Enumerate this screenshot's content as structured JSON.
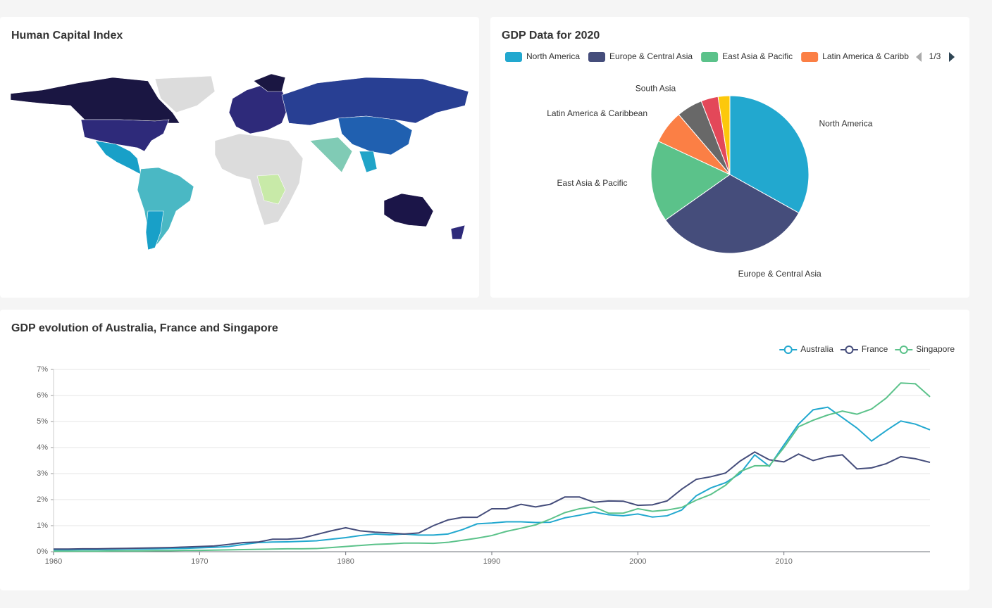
{
  "chart_data": [
    {
      "type": "map",
      "title": "Human Capital Index"
    },
    {
      "type": "pie",
      "title": "GDP Data for 2020",
      "categories": [
        "North America",
        "Europe & Central Asia",
        "East Asia & Pacific",
        "Latin America & Caribbean",
        "South Asia",
        null,
        null
      ],
      "values": [
        33,
        32,
        16.7,
        6.8,
        5.3,
        3.5,
        2.4
      ],
      "colors": [
        "#22a8cf",
        "#454d7b",
        "#5bc28a",
        "#fb7f45",
        "#686868",
        "#e34859",
        "#fcc80b"
      ],
      "legend_page": "1/3"
    },
    {
      "type": "line",
      "title": "GDP evolution of Australia, France and Singapore",
      "x": [
        1960,
        1961,
        1962,
        1963,
        1964,
        1965,
        1966,
        1967,
        1968,
        1969,
        1970,
        1971,
        1972,
        1973,
        1974,
        1975,
        1976,
        1977,
        1978,
        1979,
        1980,
        1981,
        1982,
        1983,
        1984,
        1985,
        1986,
        1987,
        1988,
        1989,
        1990,
        1991,
        1992,
        1993,
        1994,
        1995,
        1996,
        1997,
        1998,
        1999,
        2000,
        2001,
        2002,
        2003,
        2004,
        2005,
        2006,
        2007,
        2008,
        2009,
        2010,
        2011,
        2012,
        2013,
        2014,
        2015,
        2016,
        2017,
        2018,
        2019,
        2020
      ],
      "series": [
        {
          "name": "Australia",
          "color": "#22a8cf",
          "values": [
            0.07,
            0.07,
            0.08,
            0.08,
            0.09,
            0.1,
            0.1,
            0.11,
            0.12,
            0.13,
            0.15,
            0.17,
            0.2,
            0.28,
            0.35,
            0.37,
            0.38,
            0.4,
            0.42,
            0.48,
            0.54,
            0.62,
            0.68,
            0.65,
            0.68,
            0.64,
            0.64,
            0.68,
            0.85,
            1.07,
            1.1,
            1.15,
            1.15,
            1.12,
            1.13,
            1.3,
            1.4,
            1.52,
            1.42,
            1.38,
            1.45,
            1.33,
            1.38,
            1.6,
            2.15,
            2.45,
            2.65,
            3.0,
            3.72,
            3.28,
            4.1,
            4.9,
            5.45,
            5.55,
            5.15,
            4.75,
            4.25,
            4.65,
            5.02,
            4.9,
            4.68
          ]
        },
        {
          "name": "France",
          "color": "#454d7b",
          "values": [
            0.1,
            0.1,
            0.11,
            0.11,
            0.12,
            0.13,
            0.14,
            0.15,
            0.16,
            0.18,
            0.2,
            0.22,
            0.28,
            0.35,
            0.37,
            0.48,
            0.48,
            0.52,
            0.66,
            0.8,
            0.92,
            0.8,
            0.75,
            0.72,
            0.68,
            0.72,
            1.0,
            1.22,
            1.32,
            1.32,
            1.65,
            1.65,
            1.82,
            1.72,
            1.82,
            2.1,
            2.1,
            1.9,
            1.95,
            1.94,
            1.78,
            1.8,
            1.95,
            2.4,
            2.78,
            2.88,
            3.02,
            3.48,
            3.83,
            3.53,
            3.45,
            3.75,
            3.5,
            3.65,
            3.72,
            3.18,
            3.22,
            3.38,
            3.65,
            3.57,
            3.43
          ]
        },
        {
          "name": "Singapore",
          "color": "#5bc28a",
          "values": [
            0.02,
            0.02,
            0.02,
            0.02,
            0.03,
            0.03,
            0.03,
            0.04,
            0.04,
            0.05,
            0.05,
            0.06,
            0.07,
            0.08,
            0.09,
            0.1,
            0.11,
            0.11,
            0.12,
            0.16,
            0.2,
            0.24,
            0.28,
            0.3,
            0.33,
            0.33,
            0.32,
            0.36,
            0.44,
            0.52,
            0.62,
            0.78,
            0.9,
            1.03,
            1.25,
            1.5,
            1.65,
            1.72,
            1.48,
            1.48,
            1.65,
            1.55,
            1.6,
            1.7,
            1.98,
            2.2,
            2.55,
            3.08,
            3.3,
            3.3,
            4.0,
            4.8,
            5.05,
            5.25,
            5.4,
            5.28,
            5.48,
            5.9,
            6.48,
            6.45,
            5.95
          ]
        }
      ],
      "xlim": [
        1960,
        2020
      ],
      "xticks": [
        1960,
        1970,
        1980,
        1990,
        2000,
        2010
      ],
      "ylim": [
        0,
        7
      ],
      "yticks": [
        {
          "value": 0,
          "label": "0%"
        },
        {
          "value": 1,
          "label": "1%"
        },
        {
          "value": 2,
          "label": "2%"
        },
        {
          "value": 3,
          "label": "3%"
        },
        {
          "value": 4,
          "label": "4%"
        },
        {
          "value": 5,
          "label": "5%"
        },
        {
          "value": 6,
          "label": "6%"
        },
        {
          "value": 7,
          "label": "7%"
        }
      ],
      "grid": true,
      "legend": "top-right"
    }
  ]
}
